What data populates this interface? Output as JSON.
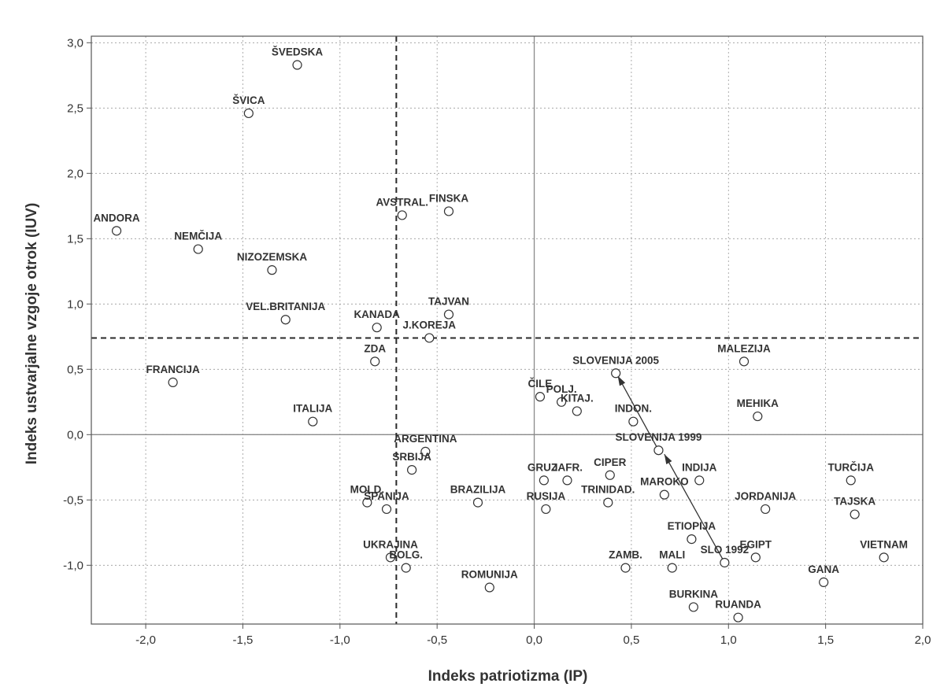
{
  "chart_data": {
    "type": "scatter",
    "title": "",
    "xlabel": "Indeks patriotizma (IP)",
    "ylabel": "Indeks ustvarjalne vzgoje otrok (IUV)",
    "xlim": [
      -2.28,
      2.0
    ],
    "ylim": [
      -1.45,
      3.05
    ],
    "x_ticks": [
      -2.0,
      -1.5,
      -1.0,
      -0.5,
      0.0,
      0.5,
      1.0,
      1.5,
      2.0
    ],
    "x_tick_labels": [
      "-2,0",
      "-1,5",
      "-1,0",
      "-0,5",
      "0,0",
      "0,5",
      "1,0",
      "1,5",
      "2,0"
    ],
    "y_ticks": [
      -1.0,
      -0.5,
      0.0,
      0.5,
      1.0,
      1.5,
      2.0,
      2.5,
      3.0
    ],
    "y_tick_labels": [
      "-1,0",
      "-0,5",
      "0,0",
      "0,5",
      "1,0",
      "1,5",
      "2,0",
      "2,5",
      "3,0"
    ],
    "grid": true,
    "reference_lines": {
      "zero_x": 0.0,
      "zero_y": 0.0,
      "dashed_x": -0.71,
      "dashed_y": 0.74
    },
    "arrows": [
      {
        "from": [
          0.98,
          -0.98
        ],
        "to": [
          0.67,
          -0.15
        ]
      },
      {
        "from": [
          0.64,
          -0.12
        ],
        "to": [
          0.43,
          0.45
        ]
      }
    ],
    "points": [
      {
        "label": "ŠVEDSKA",
        "x": -1.22,
        "y": 2.83
      },
      {
        "label": "ŠVICA",
        "x": -1.47,
        "y": 2.46
      },
      {
        "label": "AVSTRAL.",
        "x": -0.68,
        "y": 1.68
      },
      {
        "label": "FINSKA",
        "x": -0.44,
        "y": 1.71
      },
      {
        "label": "ANDORA",
        "x": -2.15,
        "y": 1.56
      },
      {
        "label": "NEMČIJA",
        "x": -1.73,
        "y": 1.42
      },
      {
        "label": "NIZOZEMSKA",
        "x": -1.35,
        "y": 1.26
      },
      {
        "label": "TAJVAN",
        "x": -0.44,
        "y": 0.92
      },
      {
        "label": "VEL.BRITANIJA",
        "x": -1.28,
        "y": 0.88
      },
      {
        "label": "KANADA",
        "x": -0.81,
        "y": 0.82
      },
      {
        "label": "J.KOREJA",
        "x": -0.54,
        "y": 0.74
      },
      {
        "label": "ZDA",
        "x": -0.82,
        "y": 0.56
      },
      {
        "label": "FRANCIJA",
        "x": -1.86,
        "y": 0.4
      },
      {
        "label": "ITALIJA",
        "x": -1.14,
        "y": 0.1
      },
      {
        "label": "SLOVENIJA 2005",
        "x": 0.42,
        "y": 0.47
      },
      {
        "label": "MALEZIJA",
        "x": 1.08,
        "y": 0.56
      },
      {
        "label": "ČILE",
        "x": 0.03,
        "y": 0.29
      },
      {
        "label": "POLJ.",
        "x": 0.14,
        "y": 0.25
      },
      {
        "label": "KITAJ.",
        "x": 0.22,
        "y": 0.18
      },
      {
        "label": "INDON.",
        "x": 0.51,
        "y": 0.1
      },
      {
        "label": "MEHIKA",
        "x": 1.15,
        "y": 0.14
      },
      {
        "label": "SLOVENIJA 1999",
        "x": 0.64,
        "y": -0.12
      },
      {
        "label": "ARGENTINA",
        "x": -0.56,
        "y": -0.13
      },
      {
        "label": "SRBIJA",
        "x": -0.63,
        "y": -0.27
      },
      {
        "label": "GRUZ.",
        "x": 0.05,
        "y": -0.35
      },
      {
        "label": "JAFR.",
        "x": 0.17,
        "y": -0.35
      },
      {
        "label": "CIPER",
        "x": 0.39,
        "y": -0.31
      },
      {
        "label": "INDIJA",
        "x": 0.85,
        "y": -0.35
      },
      {
        "label": "TURČIJA",
        "x": 1.63,
        "y": -0.35
      },
      {
        "label": "MAROKO",
        "x": 0.67,
        "y": -0.46
      },
      {
        "label": "MOLD.",
        "x": -0.86,
        "y": -0.52
      },
      {
        "label": "ŠPANIJA",
        "x": -0.76,
        "y": -0.57
      },
      {
        "label": "BRAZILIJA",
        "x": -0.29,
        "y": -0.52
      },
      {
        "label": "RUSIJA",
        "x": 0.06,
        "y": -0.57
      },
      {
        "label": "TRINIDAD.",
        "x": 0.38,
        "y": -0.52
      },
      {
        "label": "JORDANIJA",
        "x": 1.19,
        "y": -0.57
      },
      {
        "label": "TAJSKA",
        "x": 1.65,
        "y": -0.61
      },
      {
        "label": "ETIOPIJA",
        "x": 0.81,
        "y": -0.8
      },
      {
        "label": "UKRAJINA",
        "x": -0.74,
        "y": -0.94
      },
      {
        "label": "BOLG.",
        "x": -0.66,
        "y": -1.02
      },
      {
        "label": "ZAMB.",
        "x": 0.47,
        "y": -1.02
      },
      {
        "label": "MALI",
        "x": 0.71,
        "y": -1.02
      },
      {
        "label": "SLO 1992",
        "x": 0.98,
        "y": -0.98
      },
      {
        "label": "EGIPT",
        "x": 1.14,
        "y": -0.94
      },
      {
        "label": "VIETNAM",
        "x": 1.8,
        "y": -0.94
      },
      {
        "label": "GANA",
        "x": 1.49,
        "y": -1.13
      },
      {
        "label": "ROMUNIJA",
        "x": -0.23,
        "y": -1.17
      },
      {
        "label": "BURKINA",
        "x": 0.82,
        "y": -1.32
      },
      {
        "label": "RUANDA",
        "x": 1.05,
        "y": -1.4
      }
    ]
  }
}
